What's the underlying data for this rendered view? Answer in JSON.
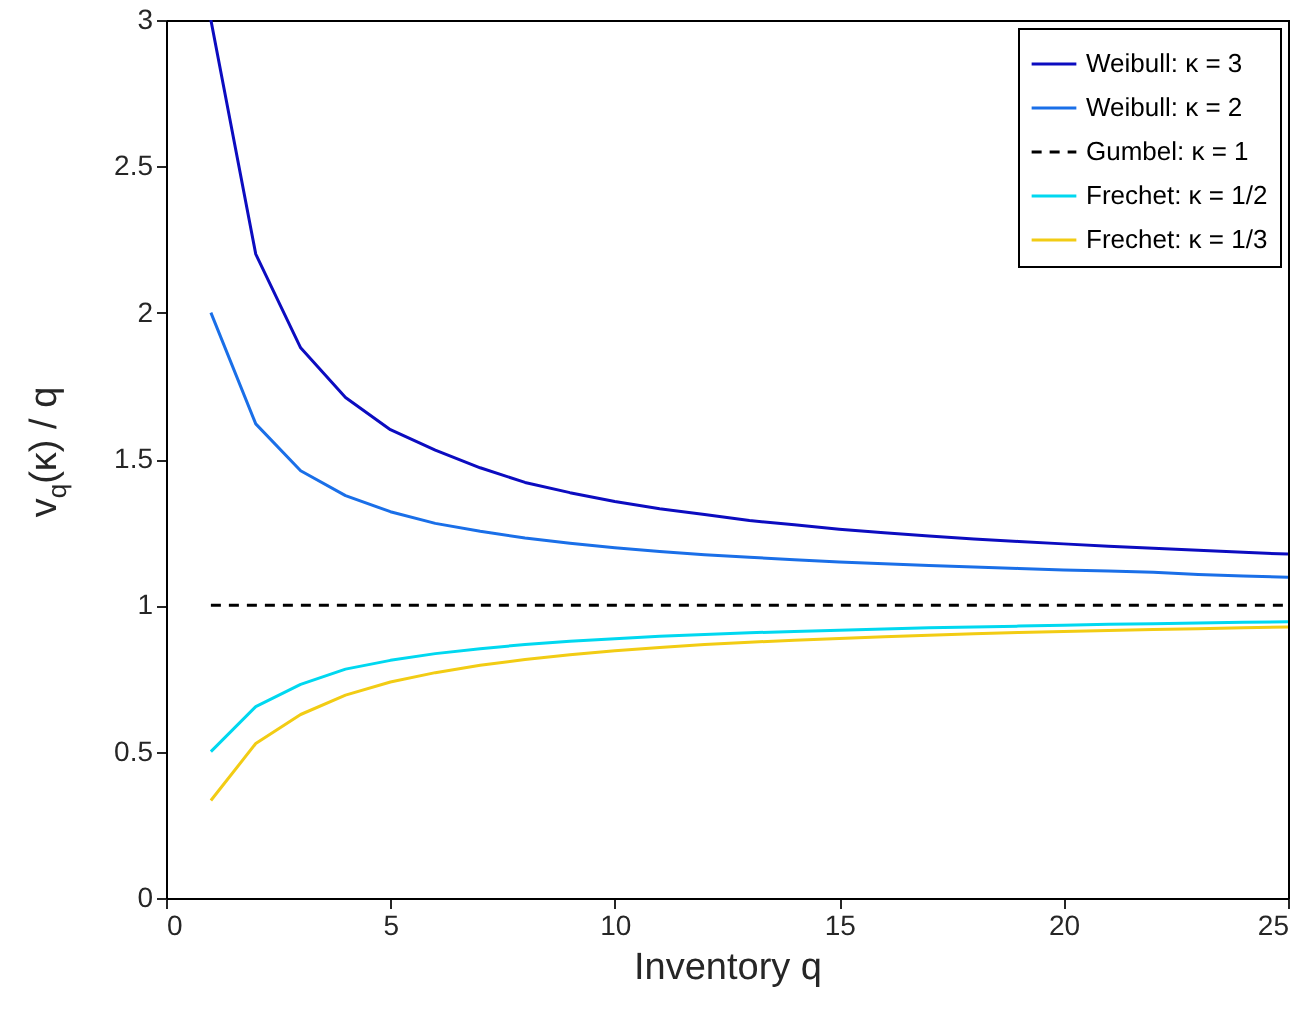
{
  "chart_data": {
    "type": "line",
    "xlabel": "Inventory q",
    "ylabel": "v$_{q}$(κ) / q",
    "x": [
      1,
      2,
      3,
      4,
      5,
      6,
      7,
      8,
      9,
      10,
      11,
      12,
      13,
      14,
      15,
      16,
      17,
      18,
      19,
      20,
      21,
      22,
      23,
      24,
      25
    ],
    "xlim": [
      0,
      25
    ],
    "xticks": [
      0,
      5,
      10,
      15,
      20,
      25
    ],
    "ylim": [
      0,
      3
    ],
    "yticks": [
      0,
      0.5,
      1,
      1.5,
      2,
      2.5,
      3
    ],
    "grid": false,
    "legend": "top right",
    "series": [
      {
        "name": "Weibull: κ = 3",
        "color": "#0c0cc0",
        "line_style": "solid",
        "values": [
          3,
          2.2,
          1.88,
          1.71,
          1.6,
          1.53,
          1.47,
          1.42,
          1.385,
          1.355,
          1.33,
          1.31,
          1.29,
          1.275,
          1.26,
          1.248,
          1.237,
          1.227,
          1.218,
          1.21,
          1.202,
          1.195,
          1.188,
          1.181,
          1.175
        ]
      },
      {
        "name": "Weibull: κ = 2",
        "color": "#1a6fe8",
        "line_style": "solid",
        "values": [
          2,
          1.62,
          1.46,
          1.375,
          1.32,
          1.28,
          1.253,
          1.23,
          1.212,
          1.197,
          1.184,
          1.173,
          1.164,
          1.156,
          1.148,
          1.142,
          1.136,
          1.131,
          1.126,
          1.121,
          1.117,
          1.113,
          1.105,
          1.1,
          1.096
        ]
      },
      {
        "name": "Gumbel: κ = 1",
        "color": "#000000",
        "line_style": "dashed",
        "values": [
          1,
          1,
          1,
          1,
          1,
          1,
          1,
          1,
          1,
          1,
          1,
          1,
          1,
          1,
          1,
          1,
          1,
          1,
          1,
          1,
          1,
          1,
          1,
          1,
          1
        ]
      },
      {
        "name": "Frechet: κ = 1/2",
        "color": "#00d8f0",
        "line_style": "solid",
        "values": [
          0.5,
          0.654,
          0.73,
          0.782,
          0.812,
          0.835,
          0.852,
          0.866,
          0.877,
          0.886,
          0.894,
          0.9,
          0.906,
          0.911,
          0.915,
          0.919,
          0.923,
          0.926,
          0.929,
          0.932,
          0.935,
          0.937,
          0.94,
          0.942,
          0.944
        ]
      },
      {
        "name": "Frechet: κ = 1/3",
        "color": "#f2cc14",
        "line_style": "solid",
        "values": [
          0.333,
          0.528,
          0.627,
          0.693,
          0.738,
          0.77,
          0.795,
          0.815,
          0.831,
          0.845,
          0.856,
          0.866,
          0.874,
          0.881,
          0.887,
          0.893,
          0.898,
          0.903,
          0.907,
          0.911,
          0.914,
          0.917,
          0.92,
          0.923,
          0.926
        ]
      }
    ]
  }
}
